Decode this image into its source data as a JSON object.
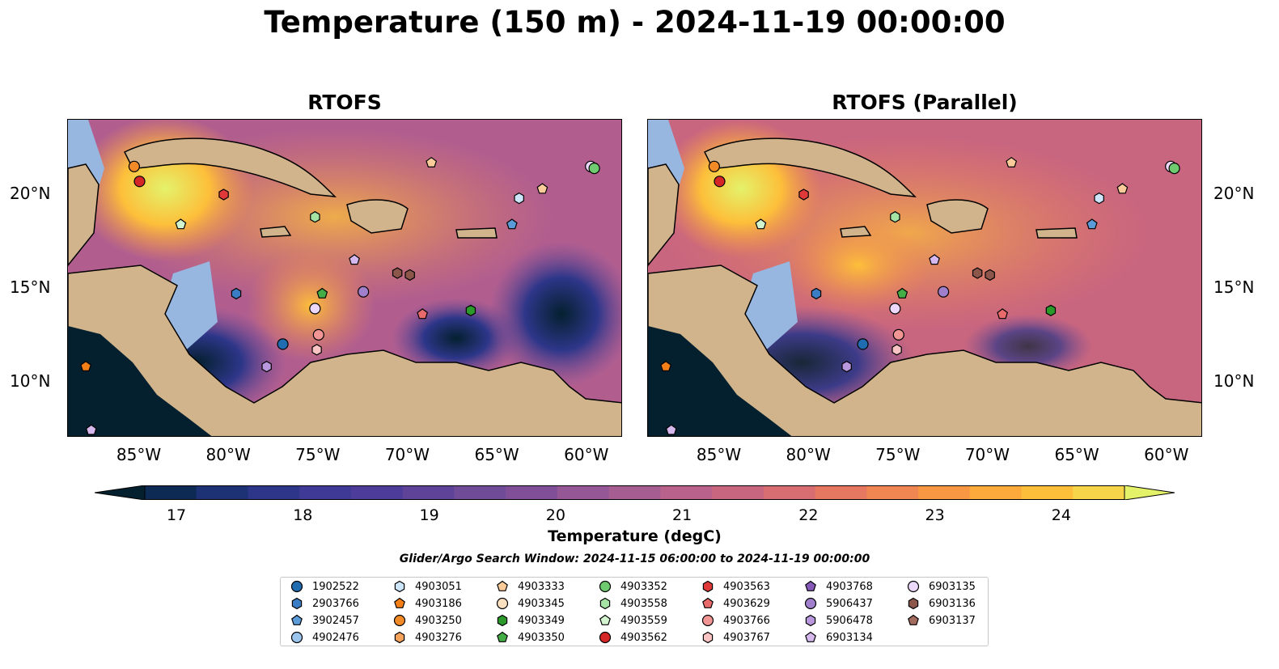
{
  "title": "Temperature (150 m) - 2024-11-19 00:00:00",
  "panels": [
    {
      "title": "RTOFS"
    },
    {
      "title": "RTOFS (Parallel)"
    }
  ],
  "axes": {
    "lon_ticks": [
      "85°W",
      "80°W",
      "75°W",
      "70°W",
      "65°W",
      "60°W"
    ],
    "lat_ticks_left": [
      "20°N",
      "15°N",
      "10°N"
    ],
    "lat_ticks_right": [
      "20°N",
      "15°N",
      "10°N"
    ],
    "lon_range": [
      -89,
      -58
    ],
    "lat_range": [
      7,
      24
    ]
  },
  "colorbar": {
    "label": "Temperature (degC)",
    "min": 17,
    "max": 24,
    "ticks": [
      "17",
      "18",
      "19",
      "20",
      "21",
      "22",
      "23",
      "24"
    ],
    "extend": "both",
    "colors": [
      "#04202f",
      "#0d2a55",
      "#1d3275",
      "#2d3689",
      "#3f3a96",
      "#4e3c9a",
      "#5f4399",
      "#704b98",
      "#814f98",
      "#955796",
      "#a65d92",
      "#b9628b",
      "#c9667f",
      "#d86d72",
      "#e67862",
      "#f08652",
      "#f79744",
      "#fbaa3b",
      "#fdbf3a",
      "#f6d54a",
      "#e4f26a"
    ]
  },
  "search_window": "Glider/Argo Search Window: 2024-11-15 06:00:00 to 2024-11-19 00:00:00",
  "legend": [
    {
      "id": "1902522",
      "shape": "circle",
      "color": "#1f6cb1"
    },
    {
      "id": "2903766",
      "shape": "hexagon",
      "color": "#3b7dc4"
    },
    {
      "id": "3902457",
      "shape": "pentagon",
      "color": "#5b9bd8"
    },
    {
      "id": "4902476",
      "shape": "circle",
      "color": "#9cc5ee"
    },
    {
      "id": "4903051",
      "shape": "hexagon",
      "color": "#cde6fb"
    },
    {
      "id": "4903186",
      "shape": "pentagon",
      "color": "#f57f17"
    },
    {
      "id": "4903250",
      "shape": "circle",
      "color": "#f28a28"
    },
    {
      "id": "4903276",
      "shape": "hexagon",
      "color": "#f5a25a"
    },
    {
      "id": "4903333",
      "shape": "pentagon",
      "color": "#fbcc9a"
    },
    {
      "id": "4903345",
      "shape": "circle",
      "color": "#fde0c0"
    },
    {
      "id": "4903349",
      "shape": "hexagon",
      "color": "#2b9a2b"
    },
    {
      "id": "4903350",
      "shape": "pentagon",
      "color": "#45ad45"
    },
    {
      "id": "4903352",
      "shape": "circle",
      "color": "#6fcb6f"
    },
    {
      "id": "4903558",
      "shape": "hexagon",
      "color": "#a5e3a5"
    },
    {
      "id": "4903559",
      "shape": "pentagon",
      "color": "#d2f5cf"
    },
    {
      "id": "4903562",
      "shape": "circle",
      "color": "#d62728"
    },
    {
      "id": "4903563",
      "shape": "hexagon",
      "color": "#e0393a"
    },
    {
      "id": "4903629",
      "shape": "pentagon",
      "color": "#e86a6a"
    },
    {
      "id": "4903766",
      "shape": "circle",
      "color": "#f29595"
    },
    {
      "id": "4903767",
      "shape": "hexagon",
      "color": "#fbc4c4"
    },
    {
      "id": "4903768",
      "shape": "pentagon",
      "color": "#8658b8"
    },
    {
      "id": "5906437",
      "shape": "circle",
      "color": "#a07fcc"
    },
    {
      "id": "5906478",
      "shape": "hexagon",
      "color": "#b997dc"
    },
    {
      "id": "6903134",
      "shape": "pentagon",
      "color": "#d4b8ee"
    },
    {
      "id": "6903135",
      "shape": "circle",
      "color": "#ecd8fa"
    },
    {
      "id": "6903136",
      "shape": "hexagon",
      "color": "#8c564b"
    },
    {
      "id": "6903137",
      "shape": "pentagon",
      "color": "#a36c5f"
    }
  ],
  "markers": [
    {
      "id": "4903250",
      "lon": -85.3,
      "lat": 21.5
    },
    {
      "id": "4903562",
      "lon": -85.0,
      "lat": 20.7
    },
    {
      "id": "4903563",
      "lon": -80.3,
      "lat": 20.0
    },
    {
      "id": "4903559",
      "lon": -82.7,
      "lat": 18.4
    },
    {
      "id": "4903558",
      "lon": -75.2,
      "lat": 18.8
    },
    {
      "id": "4903333",
      "lon": -68.7,
      "lat": 21.7
    },
    {
      "id": "4903333",
      "lon": -62.5,
      "lat": 20.3
    },
    {
      "id": "4903051",
      "lon": -63.8,
      "lat": 19.8
    },
    {
      "id": "3902457",
      "lon": -64.2,
      "lat": 18.4
    },
    {
      "id": "6903135",
      "lon": -59.8,
      "lat": 21.5
    },
    {
      "id": "4903352",
      "lon": -59.6,
      "lat": 21.4
    },
    {
      "id": "6903134",
      "lon": -73.0,
      "lat": 16.5
    },
    {
      "id": "6903136",
      "lon": -70.6,
      "lat": 15.8
    },
    {
      "id": "6903136",
      "lon": -69.9,
      "lat": 15.7
    },
    {
      "id": "5906437",
      "lon": -72.5,
      "lat": 14.8
    },
    {
      "id": "2903766",
      "lon": -79.6,
      "lat": 14.7
    },
    {
      "id": "4903350",
      "lon": -74.8,
      "lat": 14.7
    },
    {
      "id": "6903135",
      "lon": -75.2,
      "lat": 13.9
    },
    {
      "id": "4903629",
      "lon": -69.2,
      "lat": 13.6
    },
    {
      "id": "4903349",
      "lon": -66.5,
      "lat": 13.8
    },
    {
      "id": "4903766",
      "lon": -75.0,
      "lat": 12.5
    },
    {
      "id": "4903767",
      "lon": -75.1,
      "lat": 11.7
    },
    {
      "id": "1902522",
      "lon": -77.0,
      "lat": 12.0
    },
    {
      "id": "5906478",
      "lon": -77.9,
      "lat": 10.8
    },
    {
      "id": "4903186",
      "lon": -88.0,
      "lat": 10.8
    },
    {
      "id": "6903134",
      "lon": -87.7,
      "lat": 7.4
    }
  ]
}
